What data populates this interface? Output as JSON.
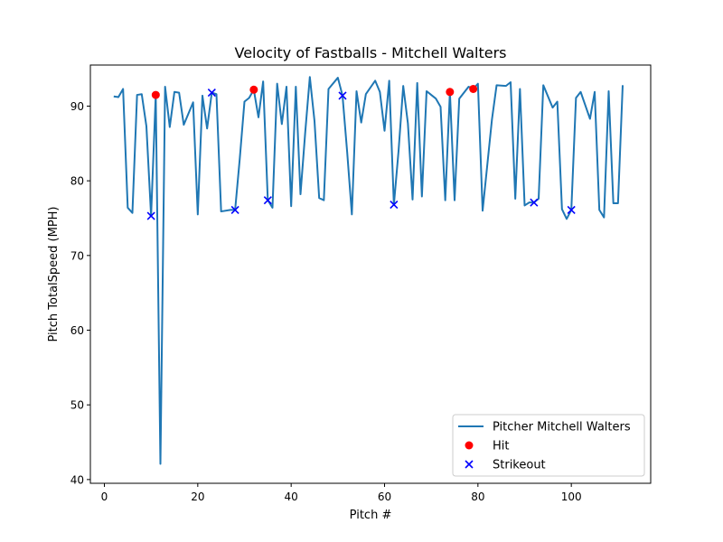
{
  "chart_data": {
    "type": "line",
    "title": "Velocity of Fastballs - Mitchell Walters",
    "xlabel": "Pitch #",
    "ylabel": "Pitch TotalSpeed (MPH)",
    "xlim": [
      -3,
      117
    ],
    "ylim": [
      39.5,
      95.5
    ],
    "xticks": [
      0,
      20,
      40,
      60,
      80,
      100
    ],
    "yticks": [
      40,
      50,
      60,
      70,
      80,
      90
    ],
    "grid": false,
    "legend_position": "lower-right",
    "series": [
      {
        "name": "Pitcher Mitchell Walters",
        "kind": "line",
        "color": "#1f77b4",
        "points": [
          [
            2,
            91.3
          ],
          [
            3,
            91.2
          ],
          [
            4,
            92.3
          ],
          [
            5,
            76.4
          ],
          [
            6,
            75.7
          ],
          [
            7,
            91.5
          ],
          [
            8,
            91.6
          ],
          [
            9,
            87.3
          ],
          [
            10,
            75.3
          ],
          [
            11,
            91.5
          ],
          [
            12,
            42.1
          ],
          [
            13,
            92.6
          ],
          [
            14,
            87.2
          ],
          [
            15,
            91.9
          ],
          [
            16,
            91.8
          ],
          [
            17,
            87.5
          ],
          [
            19,
            90.5
          ],
          [
            20,
            75.5
          ],
          [
            21,
            91.4
          ],
          [
            22,
            87.0
          ],
          [
            23,
            91.8
          ],
          [
            24,
            91.6
          ],
          [
            25,
            75.9
          ],
          [
            27,
            76.1
          ],
          [
            28,
            76.1
          ],
          [
            29,
            83.0
          ],
          [
            30,
            90.6
          ],
          [
            31,
            91.1
          ],
          [
            32,
            92.2
          ],
          [
            33,
            88.5
          ],
          [
            34,
            93.3
          ],
          [
            35,
            77.4
          ],
          [
            36,
            76.4
          ],
          [
            37,
            93.0
          ],
          [
            38,
            87.6
          ],
          [
            39,
            92.6
          ],
          [
            40,
            76.6
          ],
          [
            41,
            92.6
          ],
          [
            42,
            78.2
          ],
          [
            43,
            86.4
          ],
          [
            44,
            93.9
          ],
          [
            45,
            88.0
          ],
          [
            46,
            77.7
          ],
          [
            47,
            77.4
          ],
          [
            48,
            92.3
          ],
          [
            50,
            93.8
          ],
          [
            51,
            91.4
          ],
          [
            52,
            83.8
          ],
          [
            53,
            75.5
          ],
          [
            54,
            92.0
          ],
          [
            55,
            87.8
          ],
          [
            56,
            91.6
          ],
          [
            58,
            93.4
          ],
          [
            59,
            91.9
          ],
          [
            60,
            86.7
          ],
          [
            61,
            93.4
          ],
          [
            62,
            76.8
          ],
          [
            63,
            84.0
          ],
          [
            64,
            92.7
          ],
          [
            65,
            87.7
          ],
          [
            66,
            77.5
          ],
          [
            67,
            93.1
          ],
          [
            68,
            77.9
          ],
          [
            69,
            92.0
          ],
          [
            71,
            91.0
          ],
          [
            72,
            89.9
          ],
          [
            73,
            77.4
          ],
          [
            74,
            91.9
          ],
          [
            75,
            77.4
          ],
          [
            76,
            91.0
          ],
          [
            78,
            92.6
          ],
          [
            79,
            92.3
          ],
          [
            80,
            93.0
          ],
          [
            81,
            76.0
          ],
          [
            82,
            82.1
          ],
          [
            83,
            88.2
          ],
          [
            84,
            92.8
          ],
          [
            86,
            92.7
          ],
          [
            87,
            93.2
          ],
          [
            88,
            77.6
          ],
          [
            89,
            92.3
          ],
          [
            90,
            76.7
          ],
          [
            91,
            77.1
          ],
          [
            92,
            77.1
          ],
          [
            93,
            77.6
          ],
          [
            94,
            92.8
          ],
          [
            96,
            89.8
          ],
          [
            97,
            90.6
          ],
          [
            98,
            76.2
          ],
          [
            99,
            74.9
          ],
          [
            100,
            76.1
          ],
          [
            101,
            91.1
          ],
          [
            102,
            91.9
          ],
          [
            104,
            88.3
          ],
          [
            105,
            91.9
          ],
          [
            106,
            76.1
          ],
          [
            107,
            75.1
          ],
          [
            108,
            92.0
          ],
          [
            109,
            77.0
          ],
          [
            110,
            77.0
          ],
          [
            111,
            92.8
          ]
        ]
      },
      {
        "name": "Hit",
        "kind": "scatter",
        "marker": "circle",
        "color": "#ff0000",
        "points": [
          [
            11,
            91.5
          ],
          [
            32,
            92.2
          ],
          [
            74,
            91.9
          ],
          [
            79,
            92.3
          ]
        ]
      },
      {
        "name": "Strikeout",
        "kind": "scatter",
        "marker": "x",
        "color": "#0000ff",
        "points": [
          [
            10,
            75.3
          ],
          [
            23,
            91.8
          ],
          [
            28,
            76.1
          ],
          [
            35,
            77.4
          ],
          [
            51,
            91.4
          ],
          [
            62,
            76.8
          ],
          [
            92,
            77.1
          ],
          [
            100,
            76.1
          ]
        ]
      }
    ]
  }
}
